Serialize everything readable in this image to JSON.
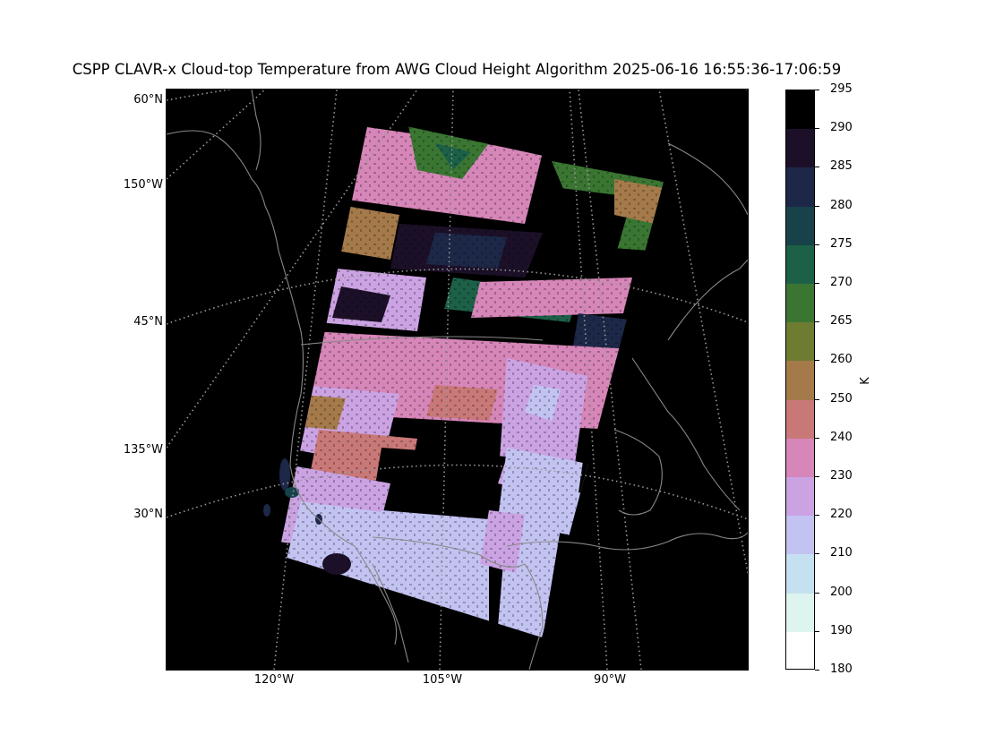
{
  "title": "CSPP CLAVR-x Cloud-top Temperature from AWG Cloud Height Algorithm 2025-06-16 16:55:36-17:06:59",
  "map": {
    "projection": "conic",
    "background": "#000000",
    "coastline_color": "#888888",
    "gridline_color": "#999999",
    "lat_labels": [
      "60°N",
      "45°N",
      "30°N"
    ],
    "lon_labels_left": [
      "150°W",
      "135°W"
    ],
    "lon_labels_bottom": [
      "120°W",
      "105°W",
      "90°W"
    ]
  },
  "colorbar": {
    "unit": "K",
    "ticks": [
      "295",
      "290",
      "285",
      "280",
      "275",
      "270",
      "265",
      "260",
      "250",
      "240",
      "230",
      "220",
      "210",
      "200",
      "190",
      "180"
    ],
    "bins": [
      {
        "from": 290,
        "to": 295,
        "color": "#000000"
      },
      {
        "from": 285,
        "to": 290,
        "color": "#1c1028"
      },
      {
        "from": 280,
        "to": 285,
        "color": "#1d2848"
      },
      {
        "from": 275,
        "to": 280,
        "color": "#17424a"
      },
      {
        "from": 270,
        "to": 275,
        "color": "#1c6048"
      },
      {
        "from": 265,
        "to": 270,
        "color": "#3a7632"
      },
      {
        "from": 260,
        "to": 265,
        "color": "#6e7c32"
      },
      {
        "from": 250,
        "to": 260,
        "color": "#a57a4a"
      },
      {
        "from": 240,
        "to": 250,
        "color": "#c97878"
      },
      {
        "from": 230,
        "to": 240,
        "color": "#d686b8"
      },
      {
        "from": 220,
        "to": 230,
        "color": "#cba3e3"
      },
      {
        "from": 210,
        "to": 220,
        "color": "#c3c3f2"
      },
      {
        "from": 200,
        "to": 210,
        "color": "#c5e1f1"
      },
      {
        "from": 190,
        "to": 200,
        "color": "#def4ee"
      },
      {
        "from": 180,
        "to": 190,
        "color": "#ffffff"
      }
    ]
  }
}
